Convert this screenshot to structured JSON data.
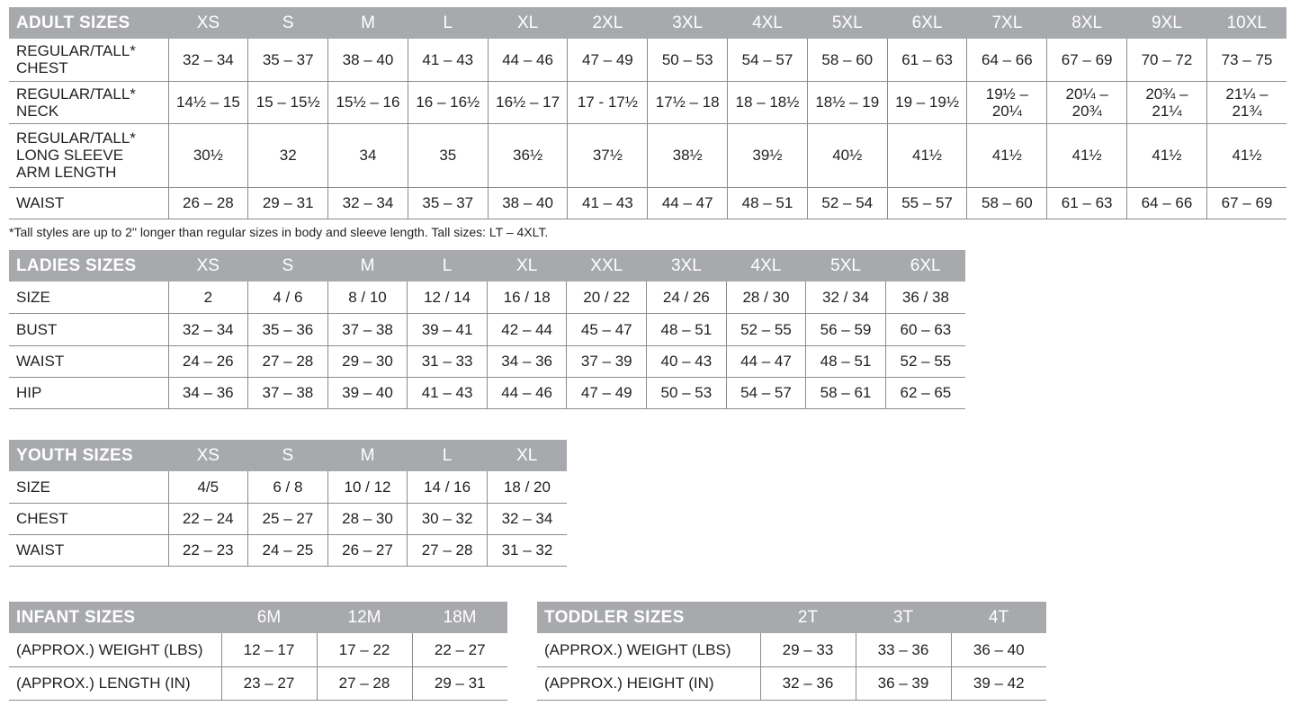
{
  "colors": {
    "header_bg": "#a7a9ac",
    "header_text": "#ffffff",
    "text": "#231f20",
    "border": "#8a8c8e"
  },
  "adult": {
    "title": "ADULT SIZES",
    "sizes": [
      "XS",
      "S",
      "M",
      "L",
      "XL",
      "2XL",
      "3XL",
      "4XL",
      "5XL",
      "6XL",
      "7XL",
      "8XL",
      "9XL",
      "10XL"
    ],
    "rows": [
      {
        "label": "REGULAR/TALL*\nCHEST",
        "values": [
          "32 – 34",
          "35 – 37",
          "38 – 40",
          "41 – 43",
          "44 – 46",
          "47 – 49",
          "50 – 53",
          "54 – 57",
          "58 – 60",
          "61 – 63",
          "64 – 66",
          "67 – 69",
          "70 – 72",
          "73 – 75"
        ]
      },
      {
        "label": "REGULAR/TALL*\nNECK",
        "values": [
          "14½ – 15",
          "15 – 15½",
          "15½ – 16",
          "16 – 16½",
          "16½ – 17",
          "17 - 17½",
          "17½ – 18",
          "18 – 18½",
          "18½ – 19",
          "19 – 19½",
          "19½ –\n20¼",
          "20¼ –\n20¾",
          "20¾ –\n21¼",
          "21¼ –\n21¾"
        ]
      },
      {
        "label": "REGULAR/TALL*\nLONG SLEEVE\nARM LENGTH",
        "values": [
          "30½",
          "32",
          "34",
          "35",
          "36½",
          "37½",
          "38½",
          "39½",
          "40½",
          "41½",
          "41½",
          "41½",
          "41½",
          "41½"
        ]
      },
      {
        "label": "WAIST",
        "values": [
          "26 – 28",
          "29 – 31",
          "32 – 34",
          "35 – 37",
          "38 – 40",
          "41 – 43",
          "44 – 47",
          "48 – 51",
          "52 – 54",
          "55 – 57",
          "58 – 60",
          "61 – 63",
          "64 – 66",
          "67 – 69"
        ]
      }
    ],
    "footnote": "*Tall styles are up to 2\" longer than regular sizes in body and sleeve length. Tall sizes: LT – 4XLT."
  },
  "ladies": {
    "title": "LADIES SIZES",
    "sizes": [
      "XS",
      "S",
      "M",
      "L",
      "XL",
      "XXL",
      "3XL",
      "4XL",
      "5XL",
      "6XL"
    ],
    "rows": [
      {
        "label": "SIZE",
        "values": [
          "2",
          "4 / 6",
          "8 / 10",
          "12 / 14",
          "16 / 18",
          "20 / 22",
          "24 / 26",
          "28 / 30",
          "32 / 34",
          "36 / 38"
        ]
      },
      {
        "label": "BUST",
        "values": [
          "32 – 34",
          "35 – 36",
          "37 – 38",
          "39 – 41",
          "42 – 44",
          "45 – 47",
          "48 – 51",
          "52 – 55",
          "56 – 59",
          "60 – 63"
        ]
      },
      {
        "label": "WAIST",
        "values": [
          "24 – 26",
          "27 – 28",
          "29 – 30",
          "31 – 33",
          "34 – 36",
          "37 – 39",
          "40 – 43",
          "44 – 47",
          "48 – 51",
          "52 – 55"
        ]
      },
      {
        "label": "HIP",
        "values": [
          "34 – 36",
          "37 – 38",
          "39 – 40",
          "41 – 43",
          "44 – 46",
          "47 – 49",
          "50 – 53",
          "54 – 57",
          "58 – 61",
          "62 – 65"
        ]
      }
    ]
  },
  "youth": {
    "title": "YOUTH SIZES",
    "sizes": [
      "XS",
      "S",
      "M",
      "L",
      "XL"
    ],
    "rows": [
      {
        "label": "SIZE",
        "values": [
          "4/5",
          "6 / 8",
          "10 / 12",
          "14 / 16",
          "18 / 20"
        ]
      },
      {
        "label": "CHEST",
        "values": [
          "22 – 24",
          "25 – 27",
          "28 – 30",
          "30 – 32",
          "32 – 34"
        ]
      },
      {
        "label": "WAIST",
        "values": [
          "22 – 23",
          "24 – 25",
          "26 – 27",
          "27 – 28",
          "31 – 32"
        ]
      }
    ]
  },
  "infant": {
    "title": "INFANT SIZES",
    "sizes": [
      "6M",
      "12M",
      "18M"
    ],
    "rows": [
      {
        "label": "(APPROX.) WEIGHT (LBS)",
        "values": [
          "12 – 17",
          "17 – 22",
          "22 – 27"
        ]
      },
      {
        "label": "(APPROX.) LENGTH (IN)",
        "values": [
          "23 – 27",
          "27 – 28",
          "29 – 31"
        ]
      }
    ]
  },
  "toddler": {
    "title": "TODDLER SIZES",
    "sizes": [
      "2T",
      "3T",
      "4T"
    ],
    "rows": [
      {
        "label": "(APPROX.) WEIGHT (LBS)",
        "values": [
          "29 – 33",
          "33 – 36",
          "36 – 40"
        ]
      },
      {
        "label": "(APPROX.) HEIGHT (IN)",
        "values": [
          "32 – 36",
          "36 – 39",
          "39 – 42"
        ]
      }
    ]
  }
}
